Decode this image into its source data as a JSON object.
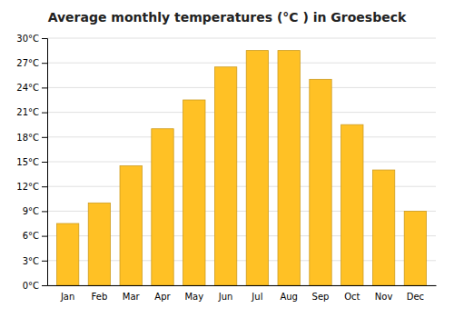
{
  "chart_data": {
    "type": "bar",
    "title": "Average monthly temperatures (°C ) in Groesbeck",
    "categories": [
      "Jan",
      "Feb",
      "Mar",
      "Apr",
      "May",
      "Jun",
      "Jul",
      "Aug",
      "Sep",
      "Oct",
      "Nov",
      "Dec"
    ],
    "values": [
      7.5,
      10.0,
      14.5,
      19.0,
      22.5,
      26.5,
      28.5,
      28.5,
      25.0,
      19.5,
      14.0,
      9.0
    ],
    "color": "#FFC125",
    "ylim": [
      0,
      30
    ],
    "yticks": [
      {
        "value": 0,
        "label": "0°C"
      },
      {
        "value": 3,
        "label": "3°C"
      },
      {
        "value": 6,
        "label": "6°C"
      },
      {
        "value": 9,
        "label": "9°C"
      },
      {
        "value": 12,
        "label": "12°C"
      },
      {
        "value": 15,
        "label": "15°C"
      },
      {
        "value": 18,
        "label": "18°C"
      },
      {
        "value": 21,
        "label": "21°C"
      },
      {
        "value": 24,
        "label": "24°C"
      },
      {
        "value": 27,
        "label": "27°C"
      },
      {
        "value": 30,
        "label": "30°C"
      }
    ],
    "grid": true
  }
}
